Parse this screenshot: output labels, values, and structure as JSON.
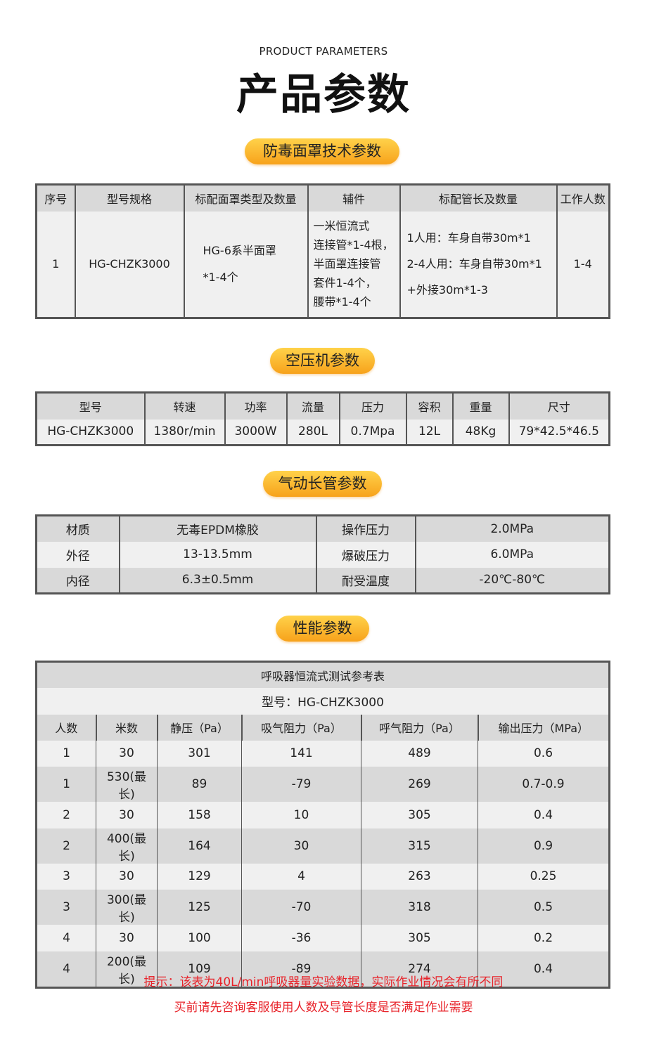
{
  "header": {
    "subtitle": "PRODUCT PARAMETERS",
    "title": "产品参数"
  },
  "sections": [
    "防毒面罩技术参数",
    "空压机参数",
    "气动长管参数",
    "性能参数"
  ],
  "mask": {
    "headers": [
      "序号",
      "型号规格",
      "标配面罩类型及数量",
      "辅件",
      "标配管长及数量",
      "工作人数"
    ],
    "row": {
      "no": "1",
      "model": "HG-CHZK3000",
      "mask_lines": [
        "HG-6系半面罩",
        "*1-4个"
      ],
      "acc_lines": [
        "一米恒流式",
        "连接管*1-4根，",
        "半面罩连接管",
        "套件1-4个，",
        "腰带*1-4个"
      ],
      "hose_lines": [
        "1人用：车身自带30m*1",
        "2-4人用：车身自带30m*1",
        "+外接30m*1-3"
      ],
      "workers": "1-4"
    }
  },
  "compressor": {
    "headers": [
      "型号",
      "转速",
      "功率",
      "流量",
      "压力",
      "容积",
      "重量",
      "尺寸"
    ],
    "values": [
      "HG-CHZK3000",
      "1380r/min",
      "3000W",
      "280L",
      "0.7Mpa",
      "12L",
      "48Kg",
      "79*42.5*46.5"
    ]
  },
  "hose": {
    "rows": [
      [
        "材质",
        "无毒EPDM橡胶",
        "操作压力",
        "2.0MPa"
      ],
      [
        "外径",
        "13-13.5mm",
        "爆破压力",
        "6.0MPa"
      ],
      [
        "内径",
        "6.3±0.5mm",
        "耐受温度",
        "-20℃-80℃"
      ]
    ]
  },
  "perf": {
    "title": "呼吸器恒流式测试参考表",
    "model": "型号：HG-CHZK3000",
    "headers": [
      "人数",
      "米数",
      "静压（Pa）",
      "吸气阻力（Pa）",
      "呼气阻力（Pa）",
      "输出压力（MPa）"
    ],
    "rows": [
      [
        "1",
        "30",
        "301",
        "141",
        "489",
        "0.6"
      ],
      [
        "1",
        "530(最长)",
        "89",
        "-79",
        "269",
        "0.7-0.9"
      ],
      [
        "2",
        "30",
        "158",
        "10",
        "305",
        "0.4"
      ],
      [
        "2",
        "400(最长)",
        "164",
        "30",
        "315",
        "0.9"
      ],
      [
        "3",
        "30",
        "129",
        "4",
        "263",
        "0.25"
      ],
      [
        "3",
        "300(最长)",
        "125",
        "-70",
        "318",
        "0.5"
      ],
      [
        "4",
        "30",
        "100",
        "-36",
        "305",
        "0.2"
      ],
      [
        "4",
        "200(最长)",
        "109",
        "-89",
        "274",
        "0.4"
      ]
    ]
  },
  "notes": [
    "提示：该表为40L/min呼吸器量实验数据，实际作业情况会有所不同",
    "买前请先咨询客服使用人数及导管长度是否满足作业需要"
  ]
}
